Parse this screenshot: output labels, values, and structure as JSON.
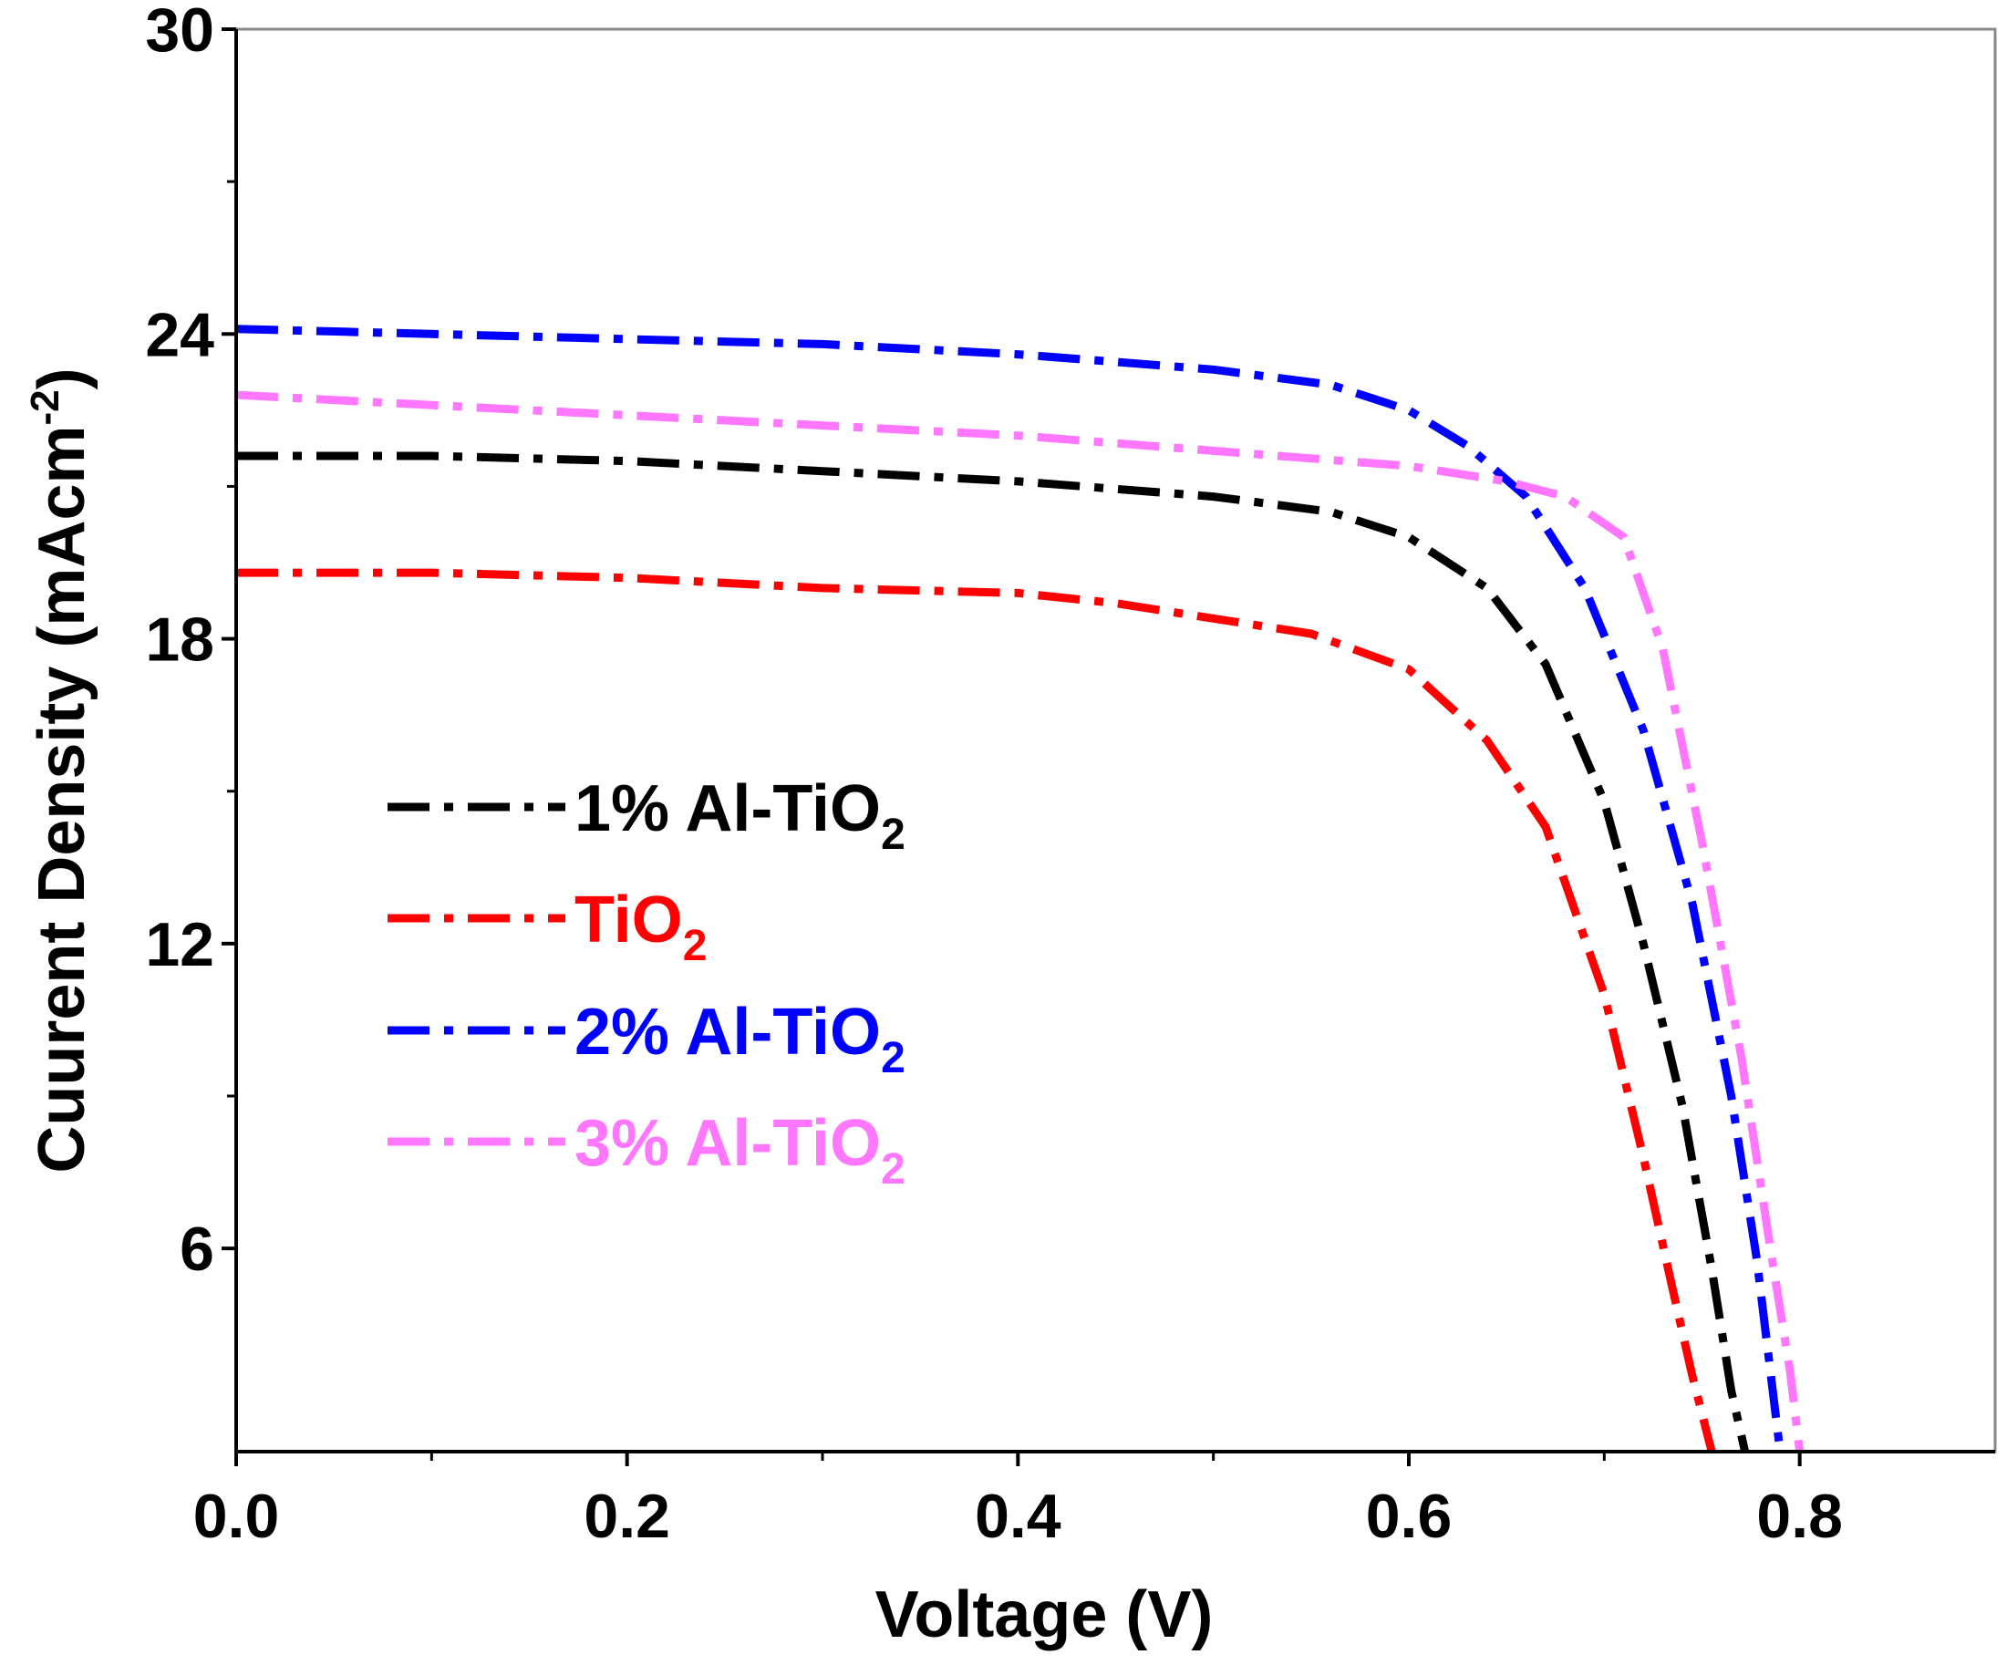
{
  "chart_data": {
    "type": "line",
    "title": "",
    "xlabel": "Voltage (V)",
    "ylabel": {
      "main": "Cuurent Density (mAcm",
      "sup": "-2",
      "close": ")"
    },
    "xlim": [
      0.0,
      0.9
    ],
    "ylim": [
      2.0,
      30.0
    ],
    "xticks": [
      {
        "value": 0.0,
        "label": "0.0"
      },
      {
        "value": 0.2,
        "label": "0.2"
      },
      {
        "value": 0.4,
        "label": "0.4"
      },
      {
        "value": 0.6,
        "label": "0.6"
      },
      {
        "value": 0.8,
        "label": "0.8"
      }
    ],
    "xminor": [
      0.1,
      0.3,
      0.5,
      0.7
    ],
    "yticks": [
      {
        "value": 6,
        "label": "6"
      },
      {
        "value": 12,
        "label": "12"
      },
      {
        "value": 18,
        "label": "18"
      },
      {
        "value": 24,
        "label": "24"
      },
      {
        "value": 30,
        "label": "30"
      }
    ],
    "yminor": [
      9,
      15,
      21,
      27
    ],
    "grid": false,
    "legend_position": "center-left",
    "series": [
      {
        "name": "1% Al-TiO2",
        "label_main": "1% Al-TiO",
        "label_sub": "2",
        "color": "#000000",
        "x": [
          0.0,
          0.1,
          0.2,
          0.3,
          0.4,
          0.5,
          0.56,
          0.6,
          0.64,
          0.67,
          0.7,
          0.72,
          0.74,
          0.755,
          0.765,
          0.772
        ],
        "y": [
          21.6,
          21.6,
          21.5,
          21.3,
          21.1,
          20.8,
          20.5,
          20.0,
          19.0,
          17.5,
          14.8,
          12.0,
          8.8,
          5.6,
          3.2,
          2.0
        ]
      },
      {
        "name": "TiO2",
        "label_main": "TiO",
        "label_sub": "2",
        "color": "#ff0000",
        "x": [
          0.0,
          0.1,
          0.2,
          0.3,
          0.4,
          0.45,
          0.5,
          0.55,
          0.6,
          0.64,
          0.67,
          0.7,
          0.72,
          0.735,
          0.745,
          0.755
        ],
        "y": [
          19.3,
          19.3,
          19.2,
          19.0,
          18.9,
          18.7,
          18.4,
          18.1,
          17.4,
          16.0,
          14.3,
          11.0,
          7.8,
          5.2,
          3.5,
          2.0
        ]
      },
      {
        "name": "2% Al-TiO2",
        "label_main": "2% Al-TiO",
        "label_sub": "2",
        "color": "#0000ff",
        "x": [
          0.0,
          0.1,
          0.2,
          0.3,
          0.4,
          0.5,
          0.56,
          0.6,
          0.63,
          0.66,
          0.69,
          0.72,
          0.745,
          0.765,
          0.778,
          0.79
        ],
        "y": [
          24.1,
          24.0,
          23.9,
          23.8,
          23.6,
          23.3,
          23.0,
          22.5,
          21.8,
          20.8,
          19.0,
          16.2,
          12.8,
          9.0,
          5.8,
          2.0
        ]
      },
      {
        "name": "3% Al-TiO2",
        "label_main": "3% Al-TiO",
        "label_sub": "2",
        "color": "#ff77ff",
        "x": [
          0.0,
          0.1,
          0.2,
          0.3,
          0.4,
          0.5,
          0.6,
          0.65,
          0.68,
          0.71,
          0.73,
          0.75,
          0.77,
          0.785,
          0.795,
          0.8
        ],
        "y": [
          22.8,
          22.6,
          22.4,
          22.2,
          22.0,
          21.7,
          21.4,
          21.1,
          20.8,
          20.0,
          17.8,
          14.0,
          9.8,
          6.0,
          3.6,
          2.0
        ]
      }
    ]
  }
}
